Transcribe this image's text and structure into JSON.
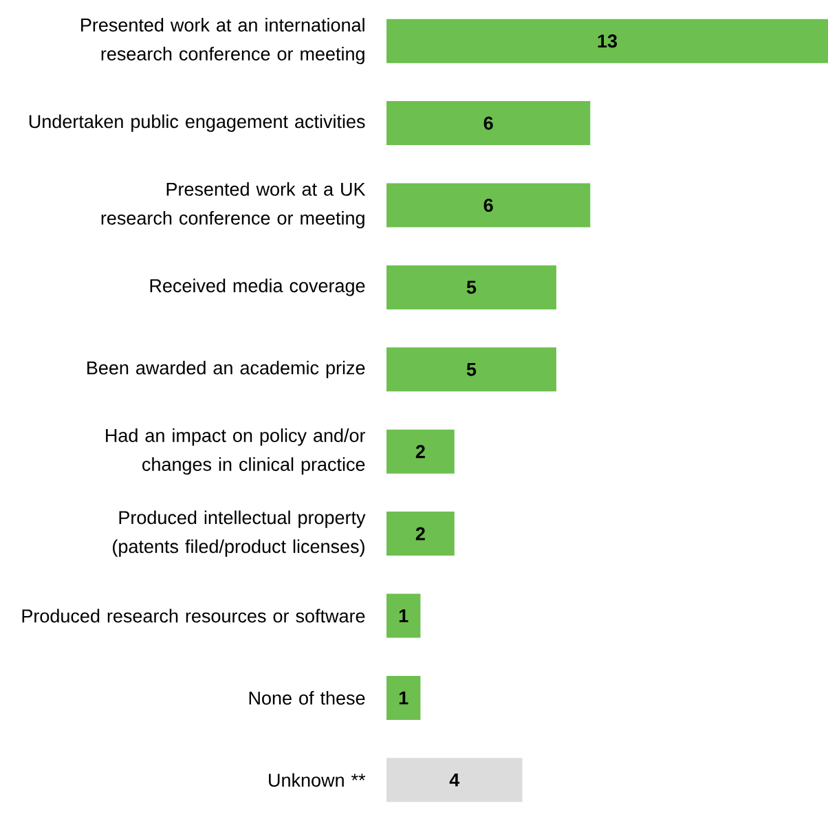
{
  "chart_data": {
    "type": "bar",
    "orientation": "horizontal",
    "data_labels": true,
    "categories": [
      "Presented work at an international research conference or meeting",
      "Undertaken public engagement activities",
      "Presented work at a UK research conference or meeting",
      "Received media coverage",
      "Been awarded an academic prize",
      "Had an impact on policy and/or changes in clinical practice",
      "Produced intellectual property (patents filed/product licenses)",
      "Produced research resources or software",
      "None of these",
      "Unknown **"
    ],
    "values": [
      13,
      6,
      6,
      5,
      5,
      2,
      2,
      1,
      1,
      4
    ],
    "colors": [
      "#6dbf4f",
      "#6dbf4f",
      "#6dbf4f",
      "#6dbf4f",
      "#6dbf4f",
      "#6dbf4f",
      "#6dbf4f",
      "#6dbf4f",
      "#6dbf4f",
      "#dcdcdc"
    ]
  }
}
